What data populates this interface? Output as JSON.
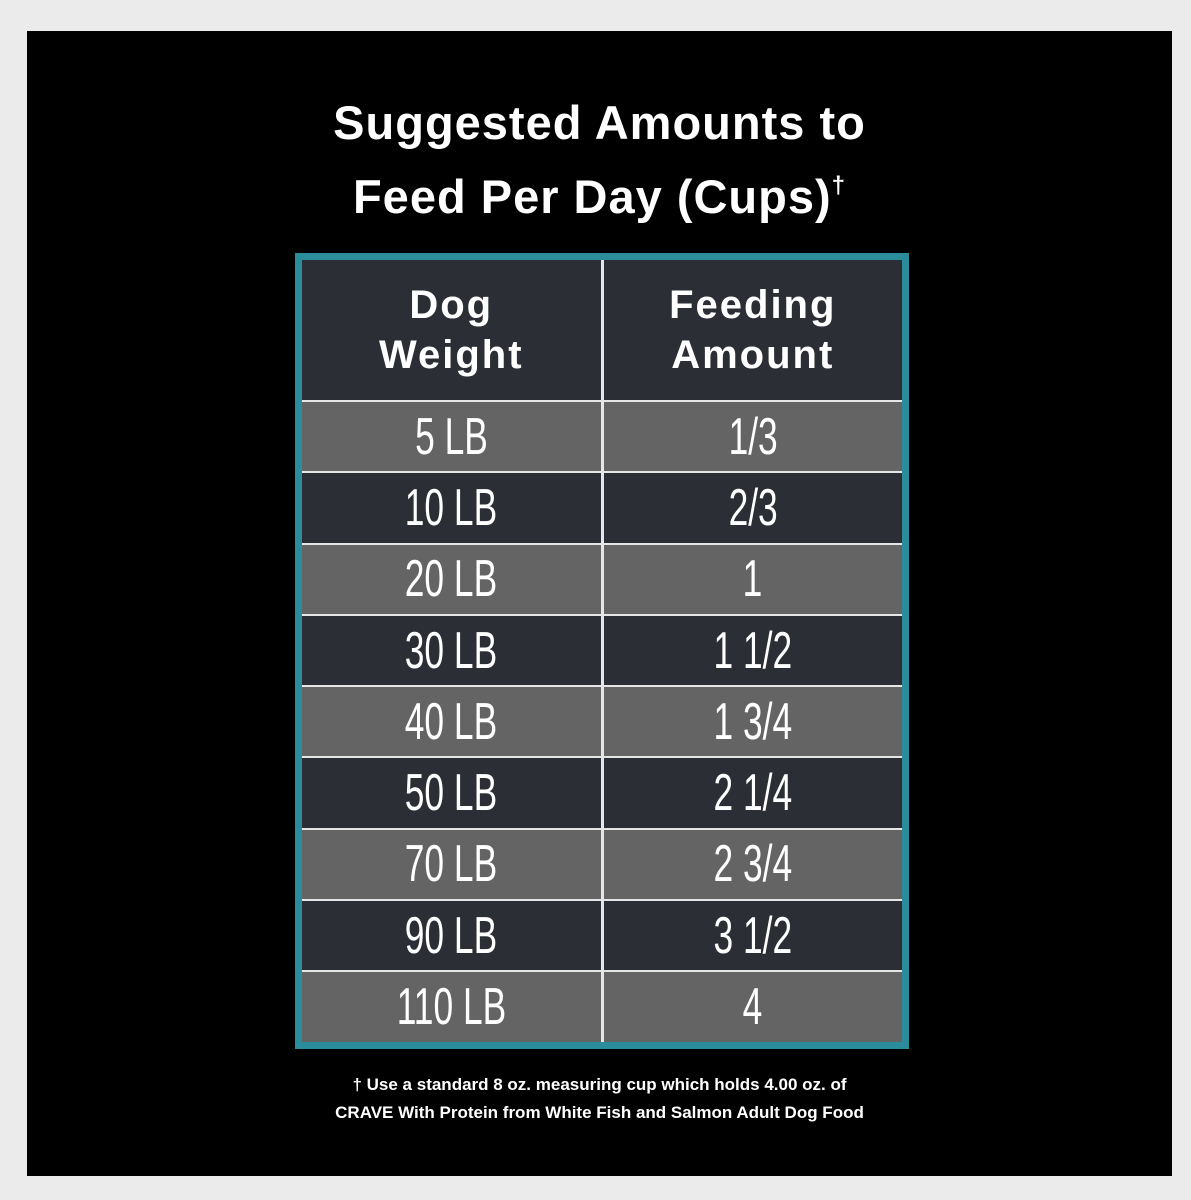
{
  "title": {
    "lines": [
      "Suggested Amounts to",
      "Feed Per Day (Cups)"
    ],
    "mark": "†"
  },
  "table": {
    "header": [
      [
        "Dog",
        "Weight"
      ],
      [
        "Feeding",
        "Amount"
      ]
    ],
    "rows": [
      [
        "5 LB",
        "1/3"
      ],
      [
        "10 LB",
        "2/3"
      ],
      [
        "20 LB",
        "1"
      ],
      [
        "30 LB",
        "1 1/2"
      ],
      [
        "40 LB",
        "1 3/4"
      ],
      [
        "50 LB",
        "2 1/4"
      ],
      [
        "70 LB",
        "2 3/4"
      ],
      [
        "90 LB",
        "3 1/2"
      ],
      [
        "110 LB",
        "4"
      ]
    ]
  },
  "footnote": [
    "† Use a standard 8 oz. measuring cup which holds 4.00 oz. of",
    "CRAVE With Protein from White Fish and Salmon Adult Dog Food"
  ]
}
